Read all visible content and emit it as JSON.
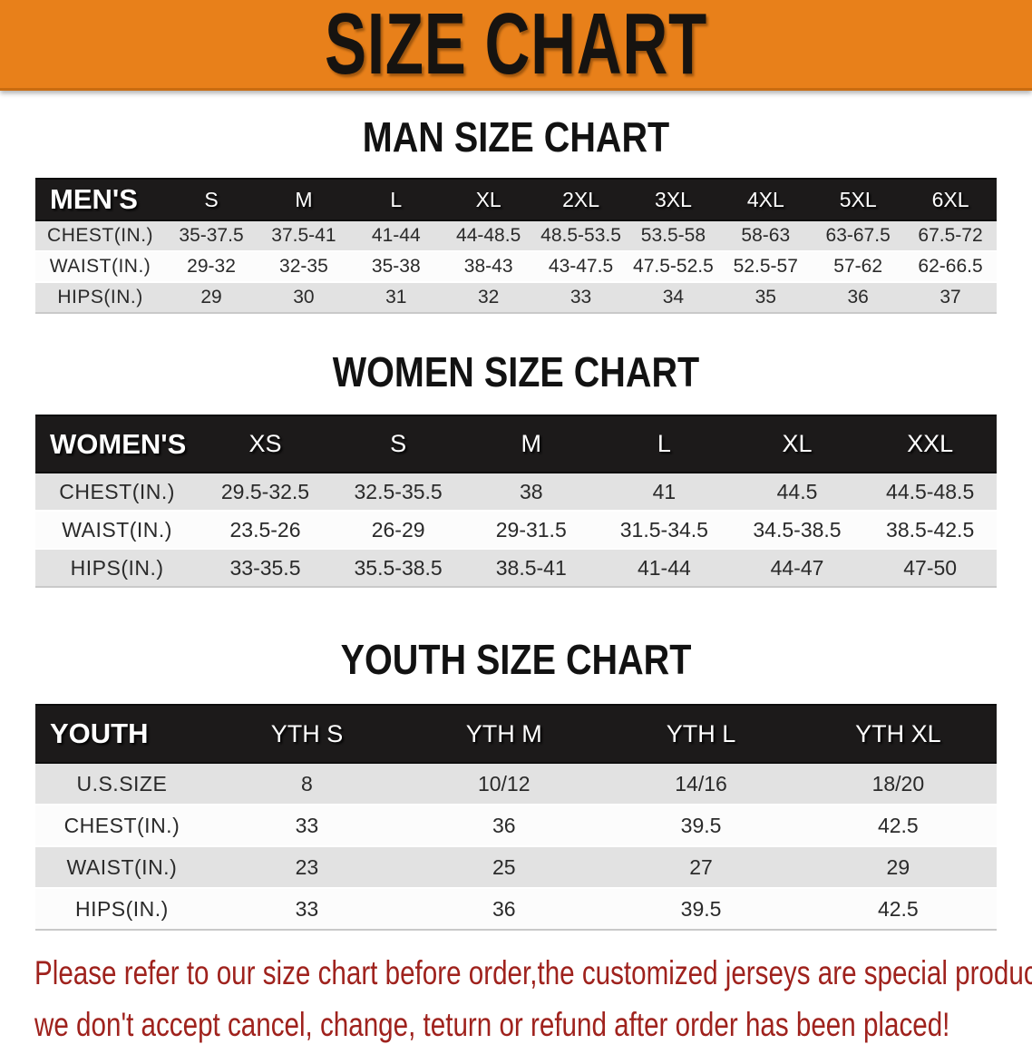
{
  "banner": {
    "title": "SIZE CHART"
  },
  "theme": {
    "banner_bg": "#e8801a",
    "banner_text": "#161310",
    "header_bar": "#1c1a1a",
    "header_text": "#ffffff",
    "row_shaded": "#e2e2e2",
    "row_plain": "#fcfcfc",
    "body_text": "#2a2a2a",
    "disclaimer": "#9f221d"
  },
  "sections": [
    {
      "title": "MAN SIZE CHART",
      "header_label": "MEN'S",
      "columns": [
        "S",
        "M",
        "L",
        "XL",
        "2XL",
        "3XL",
        "4XL",
        "5XL",
        "6XL"
      ],
      "rows": [
        {
          "label": "CHEST(IN.)",
          "values": [
            "35-37.5",
            "37.5-41",
            "41-44",
            "44-48.5",
            "48.5-53.5",
            "53.5-58",
            "58-63",
            "63-67.5",
            "67.5-72"
          ]
        },
        {
          "label": "WAIST(IN.)",
          "values": [
            "29-32",
            "32-35",
            "35-38",
            "38-43",
            "43-47.5",
            "47.5-52.5",
            "52.5-57",
            "57-62",
            "62-66.5"
          ]
        },
        {
          "label": "HIPS(IN.)",
          "values": [
            "29",
            "30",
            "31",
            "32",
            "33",
            "34",
            "35",
            "36",
            "37"
          ]
        }
      ]
    },
    {
      "title": "WOMEN SIZE CHART",
      "header_label": "WOMEN'S",
      "columns": [
        "XS",
        "S",
        "M",
        "L",
        "XL",
        "XXL"
      ],
      "rows": [
        {
          "label": "CHEST(IN.)",
          "values": [
            "29.5-32.5",
            "32.5-35.5",
            "38",
            "41",
            "44.5",
            "44.5-48.5"
          ]
        },
        {
          "label": "WAIST(IN.)",
          "values": [
            "23.5-26",
            "26-29",
            "29-31.5",
            "31.5-34.5",
            "34.5-38.5",
            "38.5-42.5"
          ]
        },
        {
          "label": "HIPS(IN.)",
          "values": [
            "33-35.5",
            "35.5-38.5",
            "38.5-41",
            "41-44",
            "44-47",
            "47-50"
          ]
        }
      ]
    },
    {
      "title": "YOUTH SIZE CHART",
      "header_label": "YOUTH",
      "columns": [
        "YTH S",
        "YTH M",
        "YTH L",
        "YTH XL"
      ],
      "rows": [
        {
          "label": "U.S.SIZE",
          "values": [
            "8",
            "10/12",
            "14/16",
            "18/20"
          ]
        },
        {
          "label": "CHEST(IN.)",
          "values": [
            "33",
            "36",
            "39.5",
            "42.5"
          ]
        },
        {
          "label": "WAIST(IN.)",
          "values": [
            "23",
            "25",
            "27",
            "29"
          ]
        },
        {
          "label": "HIPS(IN.)",
          "values": [
            "33",
            "36",
            "39.5",
            "42.5"
          ]
        }
      ]
    }
  ],
  "disclaimer": {
    "line1": "Please refer to our size chart before order,the customized jerseys are special products,",
    "line2": "we don't accept cancel, change, teturn or refund after order has been placed!"
  }
}
